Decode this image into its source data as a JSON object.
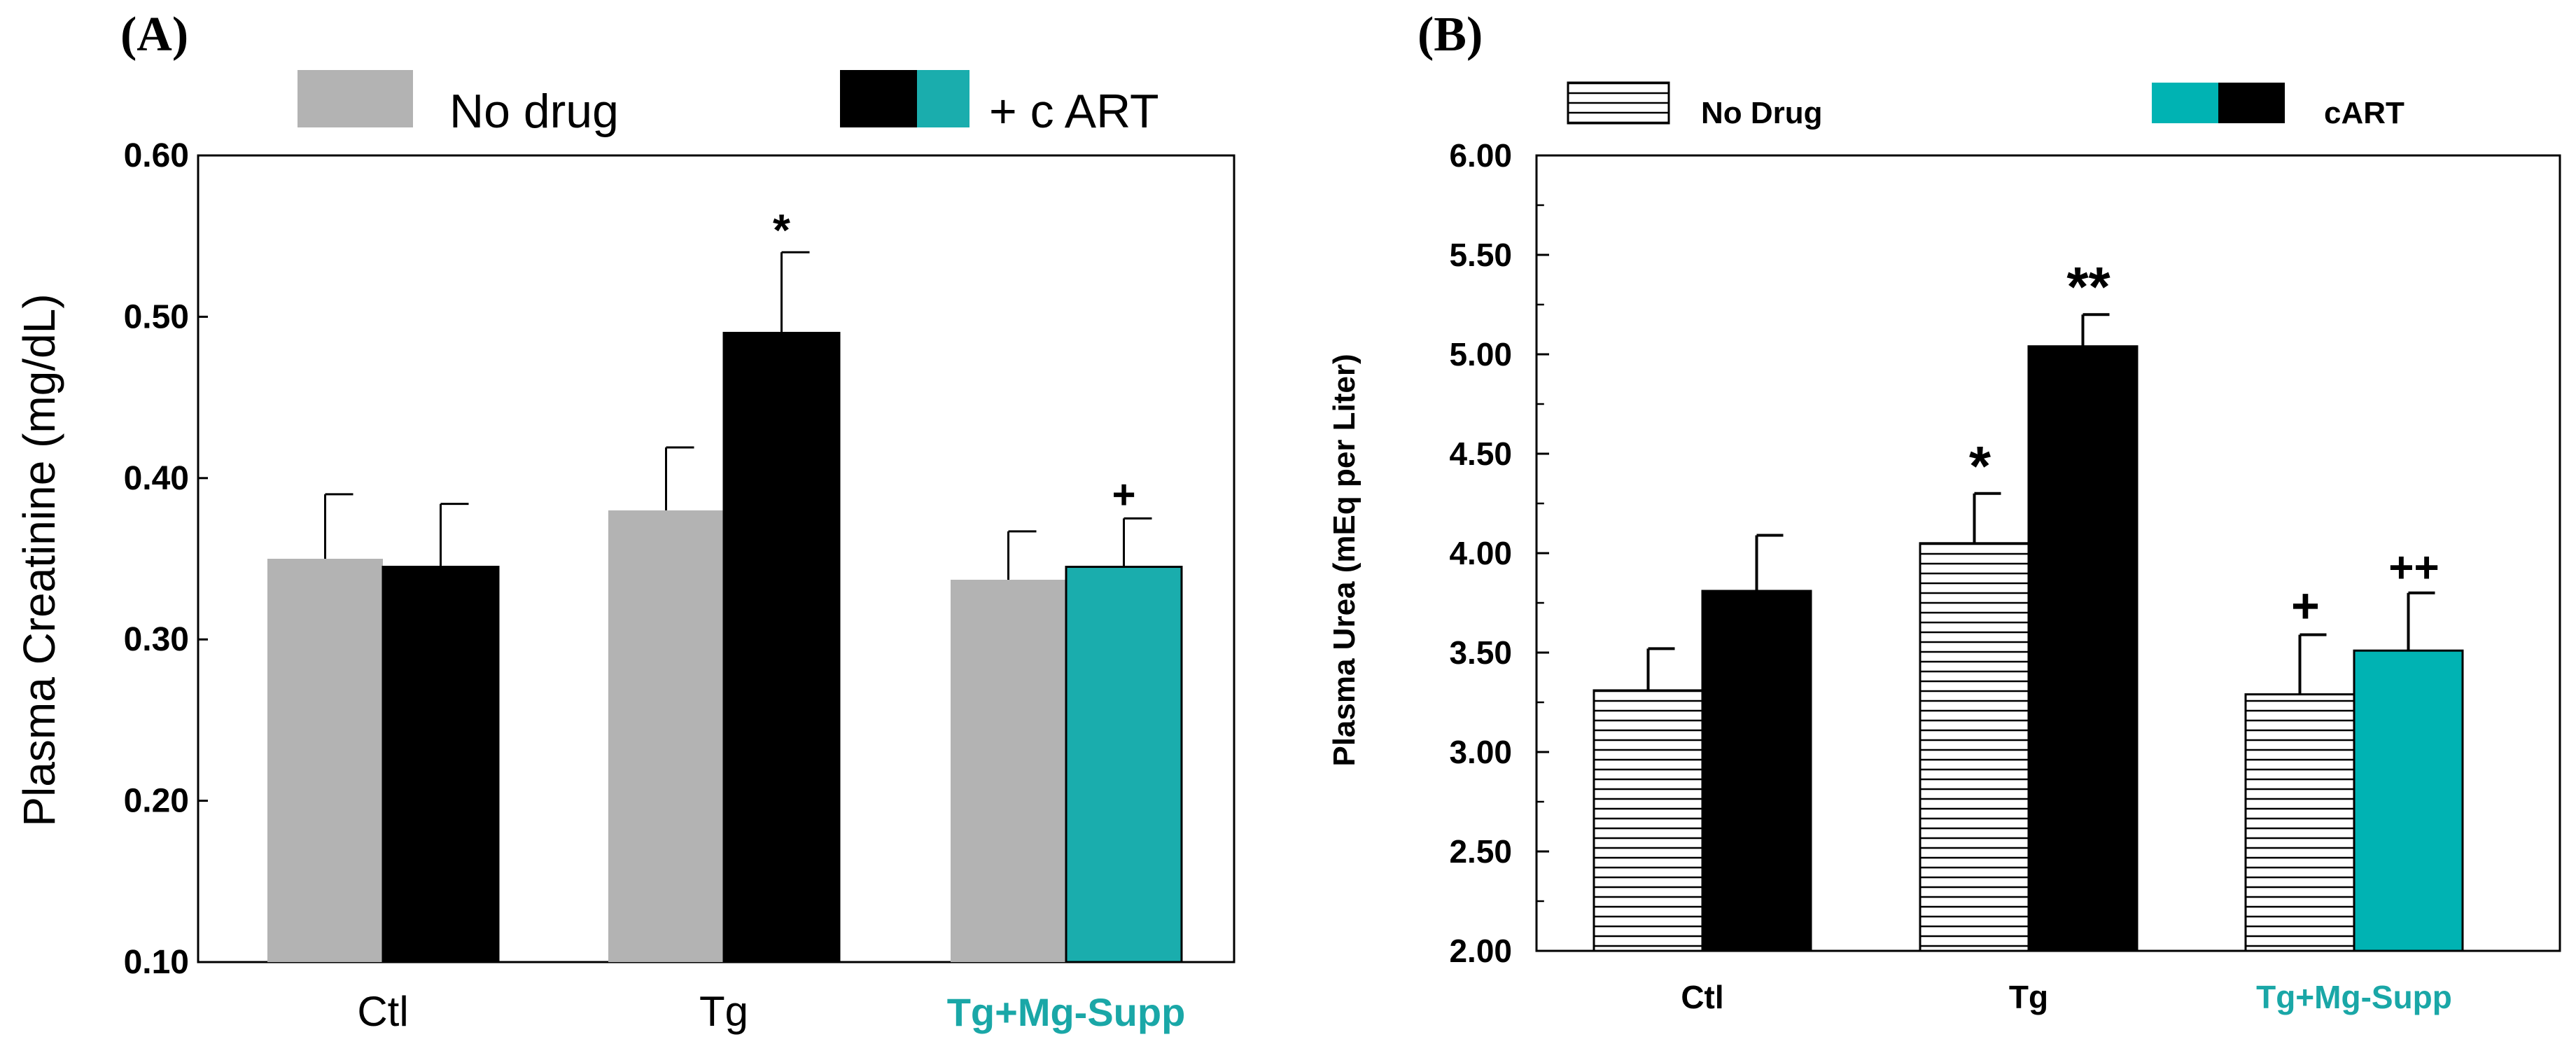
{
  "chart_data": [
    {
      "type": "bar",
      "panel_label": "(A)",
      "title": "",
      "ylabel": "Plasma Creatinine (mg/dL)",
      "xlabel": "",
      "ylim": [
        0.1,
        0.6
      ],
      "yticks": [
        "0.10",
        "0.20",
        "0.30",
        "0.40",
        "0.50",
        "0.60"
      ],
      "categories": [
        "Ctl",
        "Tg",
        "Tg+Mg-Supp"
      ],
      "category_colors": [
        "#000000",
        "#000000",
        "#1aa7a7"
      ],
      "legend": {
        "placement": "top",
        "entries": [
          "No drug",
          "+ c ART"
        ]
      },
      "series": [
        {
          "name": "No drug",
          "values": [
            0.35,
            0.38,
            0.337
          ],
          "errors": [
            0.04,
            0.039,
            0.03
          ],
          "color": "#b3b3b3"
        },
        {
          "name": "+ c ART",
          "values": [
            0.345,
            0.49,
            0.345
          ],
          "errors": [
            0.039,
            0.05,
            0.03
          ],
          "color": "#000000",
          "alt_color": "#1aadad"
        }
      ],
      "annotations": [
        {
          "text": "*",
          "category": 1,
          "series": 1
        },
        {
          "text": "+",
          "category": 2,
          "series": 1
        }
      ]
    },
    {
      "type": "bar",
      "panel_label": "(B)",
      "title": "",
      "ylabel": "Plasma Urea (mEq per Liter)",
      "xlabel": "",
      "ylim": [
        2.0,
        6.0
      ],
      "yticks": [
        "2.00",
        "2.50",
        "3.00",
        "3.50",
        "4.00",
        "4.50",
        "5.00",
        "5.50",
        "6.00"
      ],
      "categories": [
        "Ctl",
        "Tg",
        "Tg+Mg-Supp"
      ],
      "category_colors": [
        "#000000",
        "#000000",
        "#1aa7a7"
      ],
      "legend": {
        "placement": "top",
        "entries": [
          "No Drug",
          "cART"
        ]
      },
      "series": [
        {
          "name": "No Drug",
          "values": [
            3.31,
            4.05,
            3.29
          ],
          "errors": [
            0.21,
            0.25,
            0.3
          ],
          "pattern": "horizontal-lines"
        },
        {
          "name": "cART",
          "values": [
            3.81,
            5.04,
            3.51
          ],
          "errors": [
            0.28,
            0.16,
            0.29
          ],
          "color": "#000000",
          "alt_color": "#00b3b3"
        }
      ],
      "annotations": [
        {
          "text": "*",
          "category": 1,
          "series": 0
        },
        {
          "text": "**",
          "category": 1,
          "series": 1
        },
        {
          "text": "+",
          "category": 2,
          "series": 0
        },
        {
          "text": "++",
          "category": 2,
          "series": 1
        }
      ]
    }
  ]
}
